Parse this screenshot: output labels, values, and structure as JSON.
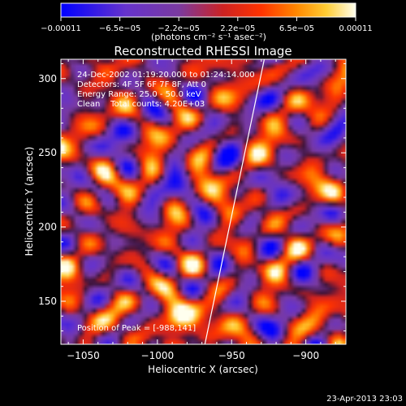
{
  "chart_data": {
    "type": "heatmap",
    "title": "Reconstructed RHESSI Image",
    "xlabel": "Heliocentric X (arcsec)",
    "ylabel": "Heliocentric Y (arcsec)",
    "xlim": [
      -1065,
      -873
    ],
    "ylim": [
      121,
      313
    ],
    "x_ticks": [
      {
        "value": -1050,
        "label": "−1050"
      },
      {
        "value": -1000,
        "label": "−1000"
      },
      {
        "value": -950,
        "label": "−950"
      },
      {
        "value": -900,
        "label": "−900"
      }
    ],
    "y_ticks": [
      {
        "value": 150,
        "label": "150"
      },
      {
        "value": 200,
        "label": "200"
      },
      {
        "value": 250,
        "label": "250"
      },
      {
        "value": 300,
        "label": "300"
      }
    ],
    "colorbar": {
      "min": -0.00011,
      "max": 0.00011,
      "tick_labels": [
        "−0.00011",
        "−6.5e−05",
        "−2.2e−05",
        "2.2e−05",
        "6.5e−05",
        "0.00011"
      ],
      "units": "(photons cm⁻² s⁻¹ asec⁻²)",
      "colors": [
        "#0000ff",
        "#6633cc",
        "#7a3aa0",
        "#cc2222",
        "#ff3300",
        "#ff8800",
        "#ffcc33",
        "#ffffee"
      ]
    },
    "annotations": [
      "24-Dec-2002 01:19:20.000 to 01:24:14.000",
      "Detectors: 4F 5F 6F 7F 8F, Att 0",
      "Energy Range: 25.0 - 50.0 keV",
      "Clean    Total counts: 4.20E+03"
    ],
    "peak_label": "Position of Peak = [-988,141]",
    "peak": {
      "x": -988,
      "y": 141
    },
    "limb_line": [
      [
        -968,
        121
      ],
      [
        -928,
        313
      ]
    ],
    "timestamp": "23-Apr-2013 23:03"
  }
}
